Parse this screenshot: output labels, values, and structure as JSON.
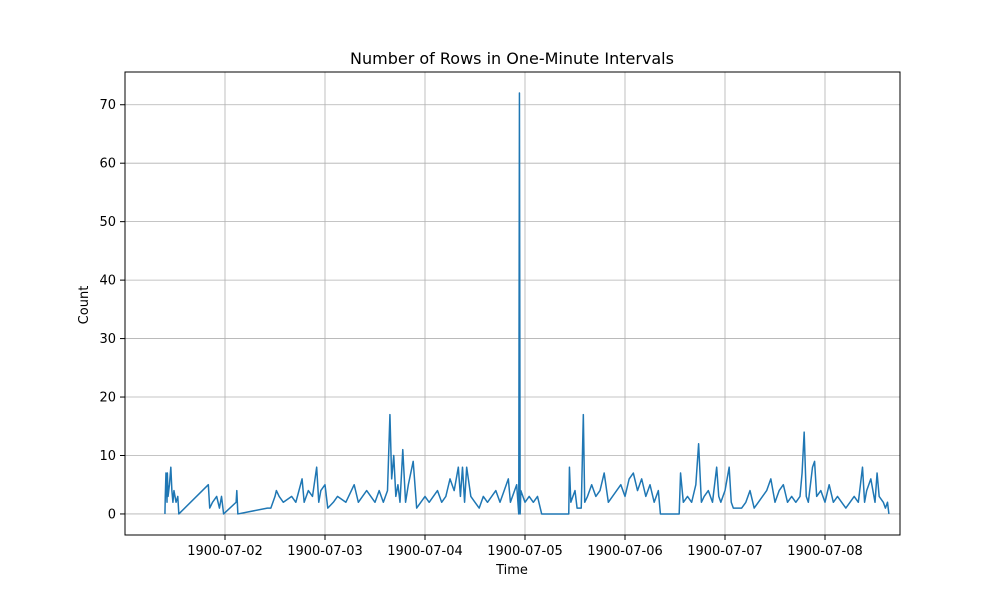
{
  "chart_data": {
    "type": "line",
    "title": "Number of Rows in One-Minute Intervals",
    "xlabel": "Time",
    "ylabel": "Count",
    "xlim": [
      "1900-07-01 00:00",
      "1900-07-08 18:00"
    ],
    "ylim": [
      -3.6,
      75.6
    ],
    "grid": true,
    "legend": "none",
    "color": "#1f77b4",
    "x_ticks": [
      "1900-07-02",
      "1900-07-03",
      "1900-07-04",
      "1900-07-05",
      "1900-07-06",
      "1900-07-07",
      "1900-07-08"
    ],
    "y_ticks": [
      0,
      10,
      20,
      30,
      40,
      50,
      60,
      70
    ],
    "series": [
      {
        "points": [
          [
            "1900-07-01 09:35",
            0
          ],
          [
            "1900-07-01 09:40",
            3
          ],
          [
            "1900-07-01 09:50",
            7
          ],
          [
            "1900-07-01 10:05",
            2
          ],
          [
            "1900-07-01 10:10",
            7
          ],
          [
            "1900-07-01 10:20",
            3
          ],
          [
            "1900-07-01 10:40",
            5
          ],
          [
            "1900-07-01 11:00",
            8
          ],
          [
            "1900-07-01 11:15",
            4
          ],
          [
            "1900-07-01 11:30",
            2
          ],
          [
            "1900-07-01 11:45",
            4
          ],
          [
            "1900-07-01 12:00",
            3
          ],
          [
            "1900-07-01 12:15",
            2
          ],
          [
            "1900-07-01 12:40",
            3
          ],
          [
            "1900-07-01 12:55",
            0
          ],
          [
            "1900-07-01 20:00",
            5
          ],
          [
            "1900-07-01 20:20",
            1
          ],
          [
            "1900-07-01 21:00",
            2
          ],
          [
            "1900-07-01 22:00",
            3
          ],
          [
            "1900-07-01 22:40",
            1
          ],
          [
            "1900-07-01 23:10",
            3
          ],
          [
            "1900-07-01 23:40",
            0
          ],
          [
            "1900-07-02 02:40",
            2
          ],
          [
            "1900-07-02 02:50",
            4
          ],
          [
            "1900-07-02 03:05",
            0
          ],
          [
            "1900-07-02 10:10",
            1
          ],
          [
            "1900-07-02 11:00",
            1
          ],
          [
            "1900-07-02 12:00",
            3
          ],
          [
            "1900-07-02 12:20",
            4
          ],
          [
            "1900-07-02 13:00",
            3
          ],
          [
            "1900-07-02 14:00",
            2
          ],
          [
            "1900-07-02 16:00",
            3
          ],
          [
            "1900-07-02 17:00",
            2
          ],
          [
            "1900-07-02 18:30",
            6
          ],
          [
            "1900-07-02 19:00",
            2
          ],
          [
            "1900-07-02 20:00",
            4
          ],
          [
            "1900-07-02 21:00",
            3
          ],
          [
            "1900-07-02 22:00",
            8
          ],
          [
            "1900-07-02 22:30",
            2
          ],
          [
            "1900-07-02 23:00",
            4
          ],
          [
            "1900-07-03 00:00",
            5
          ],
          [
            "1900-07-03 00:40",
            1
          ],
          [
            "1900-07-03 02:00",
            2
          ],
          [
            "1900-07-03 03:00",
            3
          ],
          [
            "1900-07-03 05:00",
            2
          ],
          [
            "1900-07-03 07:00",
            5
          ],
          [
            "1900-07-03 08:00",
            2
          ],
          [
            "1900-07-03 09:00",
            3
          ],
          [
            "1900-07-03 10:00",
            4
          ],
          [
            "1900-07-03 12:00",
            2
          ],
          [
            "1900-07-03 13:00",
            4
          ],
          [
            "1900-07-03 14:00",
            2
          ],
          [
            "1900-07-03 15:00",
            4
          ],
          [
            "1900-07-03 15:35",
            17
          ],
          [
            "1900-07-03 16:00",
            6
          ],
          [
            "1900-07-03 16:30",
            10
          ],
          [
            "1900-07-03 17:00",
            3
          ],
          [
            "1900-07-03 17:30",
            5
          ],
          [
            "1900-07-03 18:00",
            2
          ],
          [
            "1900-07-03 18:40",
            11
          ],
          [
            "1900-07-03 19:20",
            2
          ],
          [
            "1900-07-03 20:00",
            5
          ],
          [
            "1900-07-03 21:10",
            9
          ],
          [
            "1900-07-03 22:00",
            1
          ],
          [
            "1900-07-04 00:00",
            3
          ],
          [
            "1900-07-04 01:00",
            2
          ],
          [
            "1900-07-04 02:00",
            3
          ],
          [
            "1900-07-04 03:00",
            4
          ],
          [
            "1900-07-04 04:00",
            2
          ],
          [
            "1900-07-04 05:00",
            3
          ],
          [
            "1900-07-04 06:00",
            6
          ],
          [
            "1900-07-04 07:00",
            4
          ],
          [
            "1900-07-04 08:00",
            8
          ],
          [
            "1900-07-04 08:30",
            3
          ],
          [
            "1900-07-04 09:00",
            8
          ],
          [
            "1900-07-04 09:30",
            2
          ],
          [
            "1900-07-04 10:00",
            8
          ],
          [
            "1900-07-04 11:00",
            3
          ],
          [
            "1900-07-04 12:00",
            2
          ],
          [
            "1900-07-04 13:00",
            1
          ],
          [
            "1900-07-04 14:00",
            3
          ],
          [
            "1900-07-04 15:00",
            2
          ],
          [
            "1900-07-04 16:00",
            3
          ],
          [
            "1900-07-04 17:00",
            4
          ],
          [
            "1900-07-04 18:00",
            2
          ],
          [
            "1900-07-04 19:00",
            4
          ],
          [
            "1900-07-04 20:00",
            6
          ],
          [
            "1900-07-04 20:30",
            2
          ],
          [
            "1900-07-04 21:00",
            3
          ],
          [
            "1900-07-04 22:00",
            5
          ],
          [
            "1900-07-04 22:30",
            0
          ],
          [
            "1900-07-04 22:40",
            72
          ],
          [
            "1900-07-04 22:50",
            0
          ],
          [
            "1900-07-04 23:00",
            4
          ],
          [
            "1900-07-05 00:00",
            2
          ],
          [
            "1900-07-05 01:00",
            3
          ],
          [
            "1900-07-05 02:00",
            2
          ],
          [
            "1900-07-05 03:00",
            3
          ],
          [
            "1900-07-05 04:00",
            0
          ],
          [
            "1900-07-05 10:30",
            0
          ],
          [
            "1900-07-05 10:40",
            8
          ],
          [
            "1900-07-05 11:00",
            2
          ],
          [
            "1900-07-05 11:30",
            3
          ],
          [
            "1900-07-05 12:00",
            4
          ],
          [
            "1900-07-05 12:30",
            1
          ],
          [
            "1900-07-05 13:30",
            1
          ],
          [
            "1900-07-05 14:00",
            17
          ],
          [
            "1900-07-05 14:20",
            2
          ],
          [
            "1900-07-05 15:00",
            3
          ],
          [
            "1900-07-05 16:00",
            5
          ],
          [
            "1900-07-05 17:00",
            3
          ],
          [
            "1900-07-05 18:00",
            4
          ],
          [
            "1900-07-05 19:00",
            7
          ],
          [
            "1900-07-05 20:00",
            2
          ],
          [
            "1900-07-05 21:00",
            3
          ],
          [
            "1900-07-05 22:00",
            4
          ],
          [
            "1900-07-05 23:00",
            5
          ],
          [
            "1900-07-06 00:00",
            3
          ],
          [
            "1900-07-06 01:00",
            6
          ],
          [
            "1900-07-06 02:00",
            7
          ],
          [
            "1900-07-06 03:00",
            4
          ],
          [
            "1900-07-06 04:00",
            6
          ],
          [
            "1900-07-06 05:00",
            3
          ],
          [
            "1900-07-06 06:00",
            5
          ],
          [
            "1900-07-06 07:00",
            2
          ],
          [
            "1900-07-06 08:00",
            4
          ],
          [
            "1900-07-06 08:30",
            0
          ],
          [
            "1900-07-06 13:00",
            0
          ],
          [
            "1900-07-06 13:20",
            7
          ],
          [
            "1900-07-06 14:00",
            2
          ],
          [
            "1900-07-06 15:00",
            3
          ],
          [
            "1900-07-06 16:00",
            2
          ],
          [
            "1900-07-06 17:00",
            5
          ],
          [
            "1900-07-06 17:40",
            12
          ],
          [
            "1900-07-06 18:20",
            2
          ],
          [
            "1900-07-06 19:00",
            3
          ],
          [
            "1900-07-06 20:00",
            4
          ],
          [
            "1900-07-06 21:00",
            2
          ],
          [
            "1900-07-06 22:00",
            8
          ],
          [
            "1900-07-06 22:30",
            3
          ],
          [
            "1900-07-06 23:00",
            2
          ],
          [
            "1900-07-07 00:00",
            4
          ],
          [
            "1900-07-07 01:00",
            8
          ],
          [
            "1900-07-07 01:30",
            2
          ],
          [
            "1900-07-07 02:00",
            1
          ],
          [
            "1900-07-07 04:00",
            1
          ],
          [
            "1900-07-07 05:00",
            2
          ],
          [
            "1900-07-07 06:00",
            4
          ],
          [
            "1900-07-07 07:00",
            1
          ],
          [
            "1900-07-07 08:00",
            2
          ],
          [
            "1900-07-07 09:00",
            3
          ],
          [
            "1900-07-07 10:00",
            4
          ],
          [
            "1900-07-07 11:00",
            6
          ],
          [
            "1900-07-07 12:00",
            2
          ],
          [
            "1900-07-07 13:00",
            4
          ],
          [
            "1900-07-07 14:00",
            5
          ],
          [
            "1900-07-07 15:00",
            2
          ],
          [
            "1900-07-07 16:00",
            3
          ],
          [
            "1900-07-07 17:00",
            2
          ],
          [
            "1900-07-07 18:00",
            3
          ],
          [
            "1900-07-07 18:30",
            7
          ],
          [
            "1900-07-07 19:00",
            14
          ],
          [
            "1900-07-07 19:30",
            3
          ],
          [
            "1900-07-07 20:00",
            2
          ],
          [
            "1900-07-07 21:00",
            8
          ],
          [
            "1900-07-07 21:30",
            9
          ],
          [
            "1900-07-07 22:00",
            3
          ],
          [
            "1900-07-07 23:00",
            4
          ],
          [
            "1900-07-08 00:00",
            2
          ],
          [
            "1900-07-08 01:00",
            5
          ],
          [
            "1900-07-08 02:00",
            2
          ],
          [
            "1900-07-08 03:00",
            3
          ],
          [
            "1900-07-08 04:00",
            2
          ],
          [
            "1900-07-08 05:00",
            1
          ],
          [
            "1900-07-08 06:00",
            2
          ],
          [
            "1900-07-08 07:00",
            3
          ],
          [
            "1900-07-08 08:00",
            2
          ],
          [
            "1900-07-08 09:00",
            8
          ],
          [
            "1900-07-08 09:30",
            2
          ],
          [
            "1900-07-08 10:00",
            4
          ],
          [
            "1900-07-08 11:00",
            6
          ],
          [
            "1900-07-08 12:00",
            2
          ],
          [
            "1900-07-08 12:30",
            7
          ],
          [
            "1900-07-08 13:00",
            3
          ],
          [
            "1900-07-08 14:00",
            2
          ],
          [
            "1900-07-08 14:30",
            1
          ],
          [
            "1900-07-08 15:00",
            2
          ],
          [
            "1900-07-08 15:20",
            0
          ]
        ]
      }
    ]
  }
}
